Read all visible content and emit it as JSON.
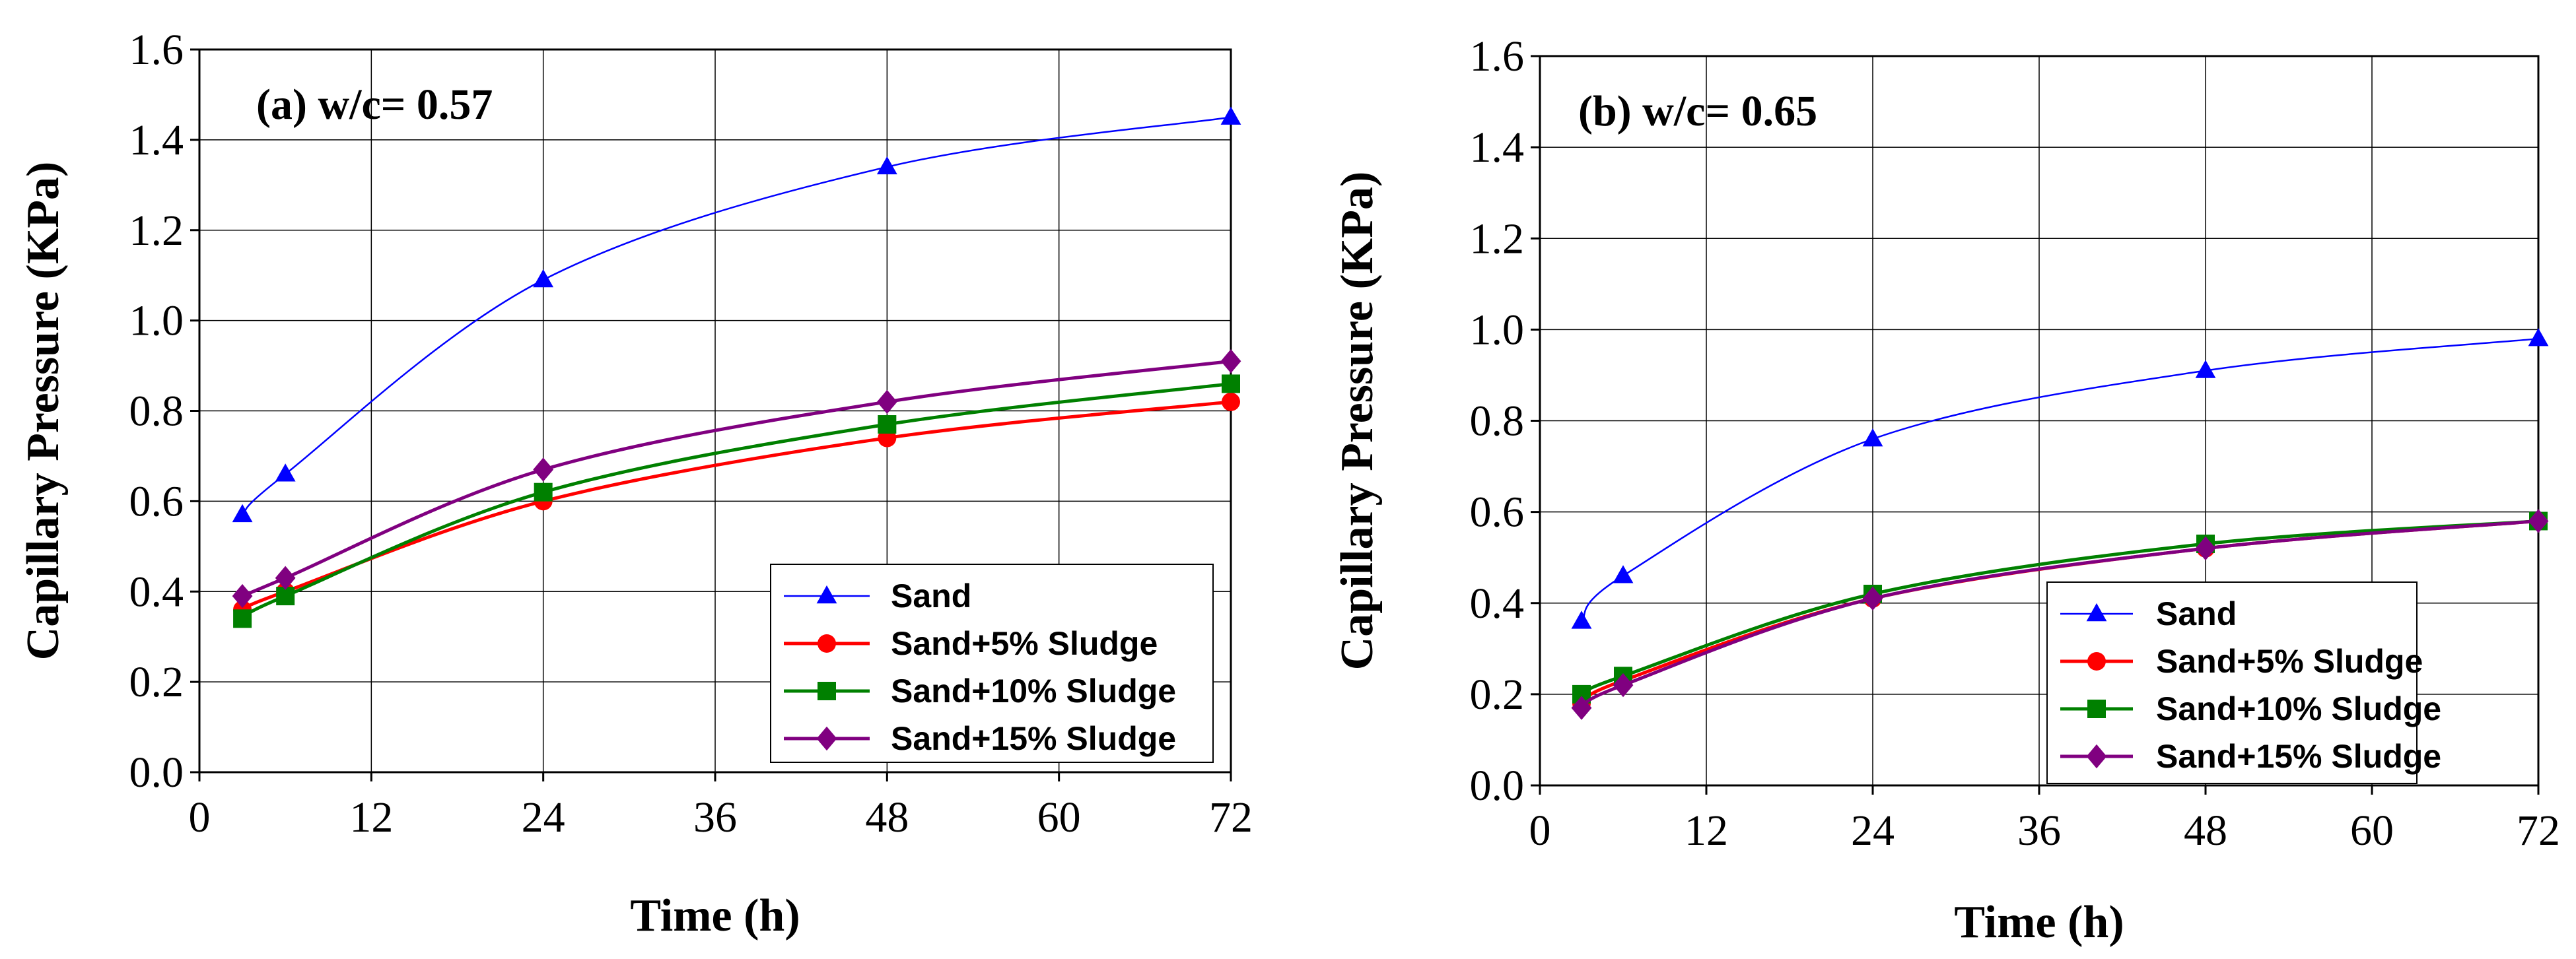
{
  "chart_data": [
    {
      "type": "line",
      "title": "(a) w/c= 0.57",
      "xlabel": "Time (h)",
      "ylabel": "Capillary  Pressure (KPa)",
      "xlim": [
        0,
        72
      ],
      "ylim": [
        0,
        1.6
      ],
      "xticks": [
        "0",
        "12",
        "24",
        "36",
        "48",
        "60",
        "72"
      ],
      "yticks": [
        "0.0",
        "0.2",
        "0.4",
        "0.6",
        "0.8",
        "1.0",
        "1.2",
        "1.4",
        "1.6"
      ],
      "grid": true,
      "legend_position": "bottom-right",
      "x": [
        3,
        6,
        24,
        48,
        72
      ],
      "series": [
        {
          "name": "Sand",
          "color": "#0000ff",
          "marker": "triangle",
          "values": [
            0.57,
            0.66,
            1.09,
            1.34,
            1.45
          ]
        },
        {
          "name": "Sand+5% Sludge",
          "color": "#ff0000",
          "marker": "circle",
          "values": [
            0.36,
            0.4,
            0.6,
            0.74,
            0.82
          ]
        },
        {
          "name": "Sand+10% Sludge",
          "color": "#008000",
          "marker": "square",
          "values": [
            0.34,
            0.39,
            0.62,
            0.77,
            0.86
          ]
        },
        {
          "name": "Sand+15% Sludge",
          "color": "#800080",
          "marker": "diamond",
          "values": [
            0.39,
            0.43,
            0.67,
            0.82,
            0.91
          ]
        }
      ]
    },
    {
      "type": "line",
      "title": "(b) w/c= 0.65",
      "xlabel": "Time (h)",
      "ylabel": "Capillary  Pressure (KPa)",
      "xlim": [
        0,
        72
      ],
      "ylim": [
        0,
        1.6
      ],
      "xticks": [
        "0",
        "12",
        "24",
        "36",
        "48",
        "60",
        "72"
      ],
      "yticks": [
        "0.0",
        "0.2",
        "0.4",
        "0.6",
        "0.8",
        "1.0",
        "1.2",
        "1.4",
        "1.6"
      ],
      "grid": true,
      "legend_position": "bottom-right",
      "x": [
        3,
        6,
        24,
        48,
        72
      ],
      "series": [
        {
          "name": "Sand",
          "color": "#0000ff",
          "marker": "triangle",
          "values": [
            0.36,
            0.46,
            0.76,
            0.91,
            0.98
          ]
        },
        {
          "name": "Sand+5% Sludge",
          "color": "#ff0000",
          "marker": "circle",
          "values": [
            0.18,
            0.23,
            0.41,
            0.52,
            0.58
          ]
        },
        {
          "name": "Sand+10% Sludge",
          "color": "#008000",
          "marker": "square",
          "values": [
            0.2,
            0.24,
            0.42,
            0.53,
            0.58
          ]
        },
        {
          "name": "Sand+15% Sludge",
          "color": "#800080",
          "marker": "diamond",
          "values": [
            0.17,
            0.22,
            0.41,
            0.52,
            0.58
          ]
        }
      ]
    }
  ]
}
